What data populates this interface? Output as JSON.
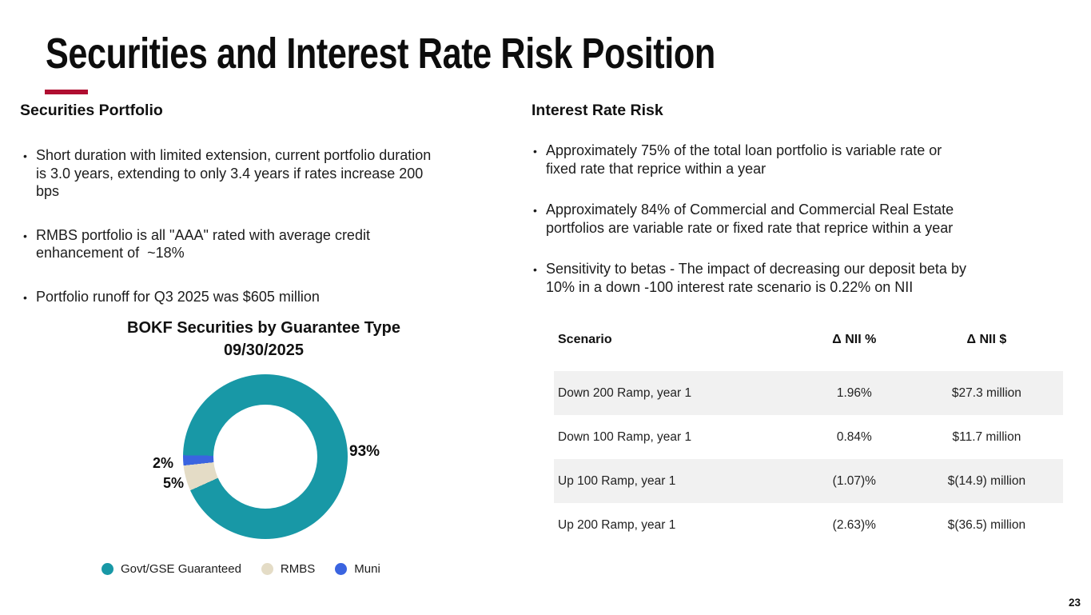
{
  "slide": {
    "title": "Securities and Interest Rate Risk Position",
    "page_number": "23",
    "accent_color": "#b00e31"
  },
  "left_section": {
    "heading": "Securities Portfolio",
    "bullets": [
      "Short duration with limited extension, current portfolio duration\nis 3.0 years, extending to only 3.4 years if rates increase 200\nbps",
      "RMBS portfolio is all \"AAA\" rated with average credit\nenhancement of  ~18%",
      "Portfolio runoff for Q3 2025 was $605 million"
    ]
  },
  "right_section": {
    "heading": "Interest Rate Risk",
    "bullets": [
      "Approximately 75% of the total loan portfolio is variable rate or\nfixed rate that reprice within a year",
      "Approximately 84% of Commercial and Commercial Real Estate\nportfolios are variable rate or fixed rate that reprice within a year",
      "Sensitivity to betas - The impact of decreasing our deposit beta by\n10% in a down -100 interest rate scenario is 0.22% on NII"
    ]
  },
  "chart_data": {
    "type": "pie",
    "donut": true,
    "title": "BOKF Securities by Guarantee Type",
    "subtitle": "09/30/2025",
    "labels": [
      "Govt/GSE Guaranteed",
      "RMBS",
      "Muni"
    ],
    "values": [
      93,
      5,
      2
    ],
    "colors": [
      "#1898a6",
      "#e4dcc6",
      "#3a64e0"
    ],
    "data_labels": [
      "93%",
      "5%",
      "2%"
    ],
    "start_angle_deg": 271,
    "legend_position": "bottom"
  },
  "table": {
    "stripe_color": "#f1f1f1",
    "headers": [
      "Scenario",
      "Δ NII %",
      "Δ NII $"
    ],
    "rows": [
      [
        "Down 200 Ramp, year 1",
        "1.96%",
        "$27.3 million"
      ],
      [
        "Down 100 Ramp, year 1",
        "0.84%",
        "$11.7 million"
      ],
      [
        "Up 100 Ramp, year 1",
        "(1.07)%",
        "$(14.9) million"
      ],
      [
        "Up 200 Ramp, year 1",
        "(2.63)%",
        "$(36.5) million"
      ]
    ]
  }
}
